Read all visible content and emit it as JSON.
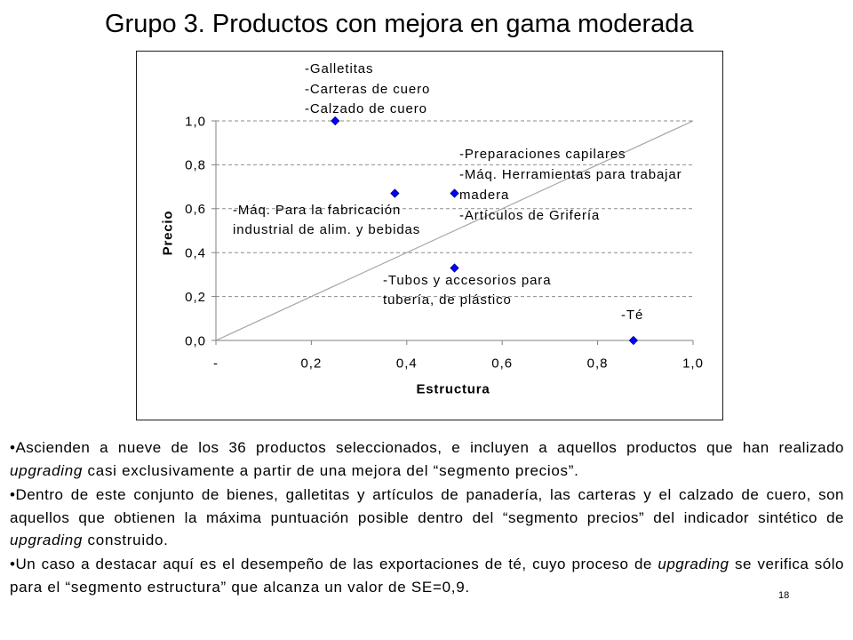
{
  "slide": {
    "title": "Grupo 3. Productos con mejora en gama moderada",
    "page_number": "18"
  },
  "chart_data": {
    "type": "scatter",
    "xlabel": "Estructura",
    "ylabel": "Precio",
    "xlim": [
      0,
      1
    ],
    "ylim": [
      0,
      1
    ],
    "x_ticks": [
      {
        "value": 0,
        "label": "-"
      },
      {
        "value": 0.2,
        "label": "0,2"
      },
      {
        "value": 0.4,
        "label": "0,4"
      },
      {
        "value": 0.6,
        "label": "0,6"
      },
      {
        "value": 0.8,
        "label": "0,8"
      },
      {
        "value": 1.0,
        "label": "1,0"
      }
    ],
    "y_ticks": [
      {
        "value": 0,
        "label": "0,0"
      },
      {
        "value": 0.2,
        "label": "0,2"
      },
      {
        "value": 0.4,
        "label": "0,4"
      },
      {
        "value": 0.6,
        "label": "0,6"
      },
      {
        "value": 0.8,
        "label": "0,8"
      },
      {
        "value": 1.0,
        "label": "1,0"
      }
    ],
    "grid_y": true,
    "legend": false,
    "marker_color": "#0000FF",
    "reference_line": {
      "x": [
        0,
        1
      ],
      "y": [
        0,
        1
      ],
      "color": "#A6A6A6"
    },
    "points": [
      {
        "x": 0.25,
        "y": 1.0,
        "label_lines": [
          "-Galletitas",
          "-Carteras de cuero",
          "-Calzado de cuero"
        ]
      },
      {
        "x": 0.375,
        "y": 0.67,
        "label_lines": [
          "-Máq. Para la fabricación",
          "industrial de alim. y bebidas"
        ]
      },
      {
        "x": 0.5,
        "y": 0.67,
        "label_lines": [
          "-Preparaciones capilares",
          "-Máq. Herramientas para trabajar",
          "madera",
          "-Artículos de Grifería"
        ]
      },
      {
        "x": 0.5,
        "y": 0.33,
        "label_lines": [
          "-Tubos y accesorios para",
          "tubería, de plástico"
        ]
      },
      {
        "x": 0.875,
        "y": 0.0,
        "label_lines": [
          "-Té"
        ]
      }
    ]
  },
  "bullets": [
    {
      "lines": [
        [
          {
            "text": "•Ascienden a nueve de los 36 productos seleccionados, e incluyen a aquellos productos que han realizado"
          }
        ],
        [
          {
            "text": "upgrading",
            "emphasis": true
          },
          {
            "text": " casi exclusivamente a partir de una mejora del “segmento precios”."
          }
        ]
      ]
    },
    {
      "lines": [
        [
          {
            "text": "•Dentro de este conjunto de bienes, galletitas y artículos de panadería, las carteras y el calzado de cuero, son"
          }
        ],
        [
          {
            "text": "aquellos que obtienen la máxima puntuación posible dentro del “segmento precios” del indicador sintético de"
          }
        ],
        [
          {
            "text": "upgrading",
            "emphasis": true
          },
          {
            "text": " construido."
          }
        ]
      ]
    },
    {
      "lines": [
        [
          {
            "text": "•Un caso a destacar aquí es el desempeño de las exportaciones de té, cuyo proceso de "
          },
          {
            "text": "upgrading",
            "emphasis": true
          },
          {
            "text": " se verifica sólo"
          }
        ],
        [
          {
            "text": "para el “segmento estructura” que alcanza un valor de SE=0,9."
          }
        ]
      ]
    }
  ]
}
